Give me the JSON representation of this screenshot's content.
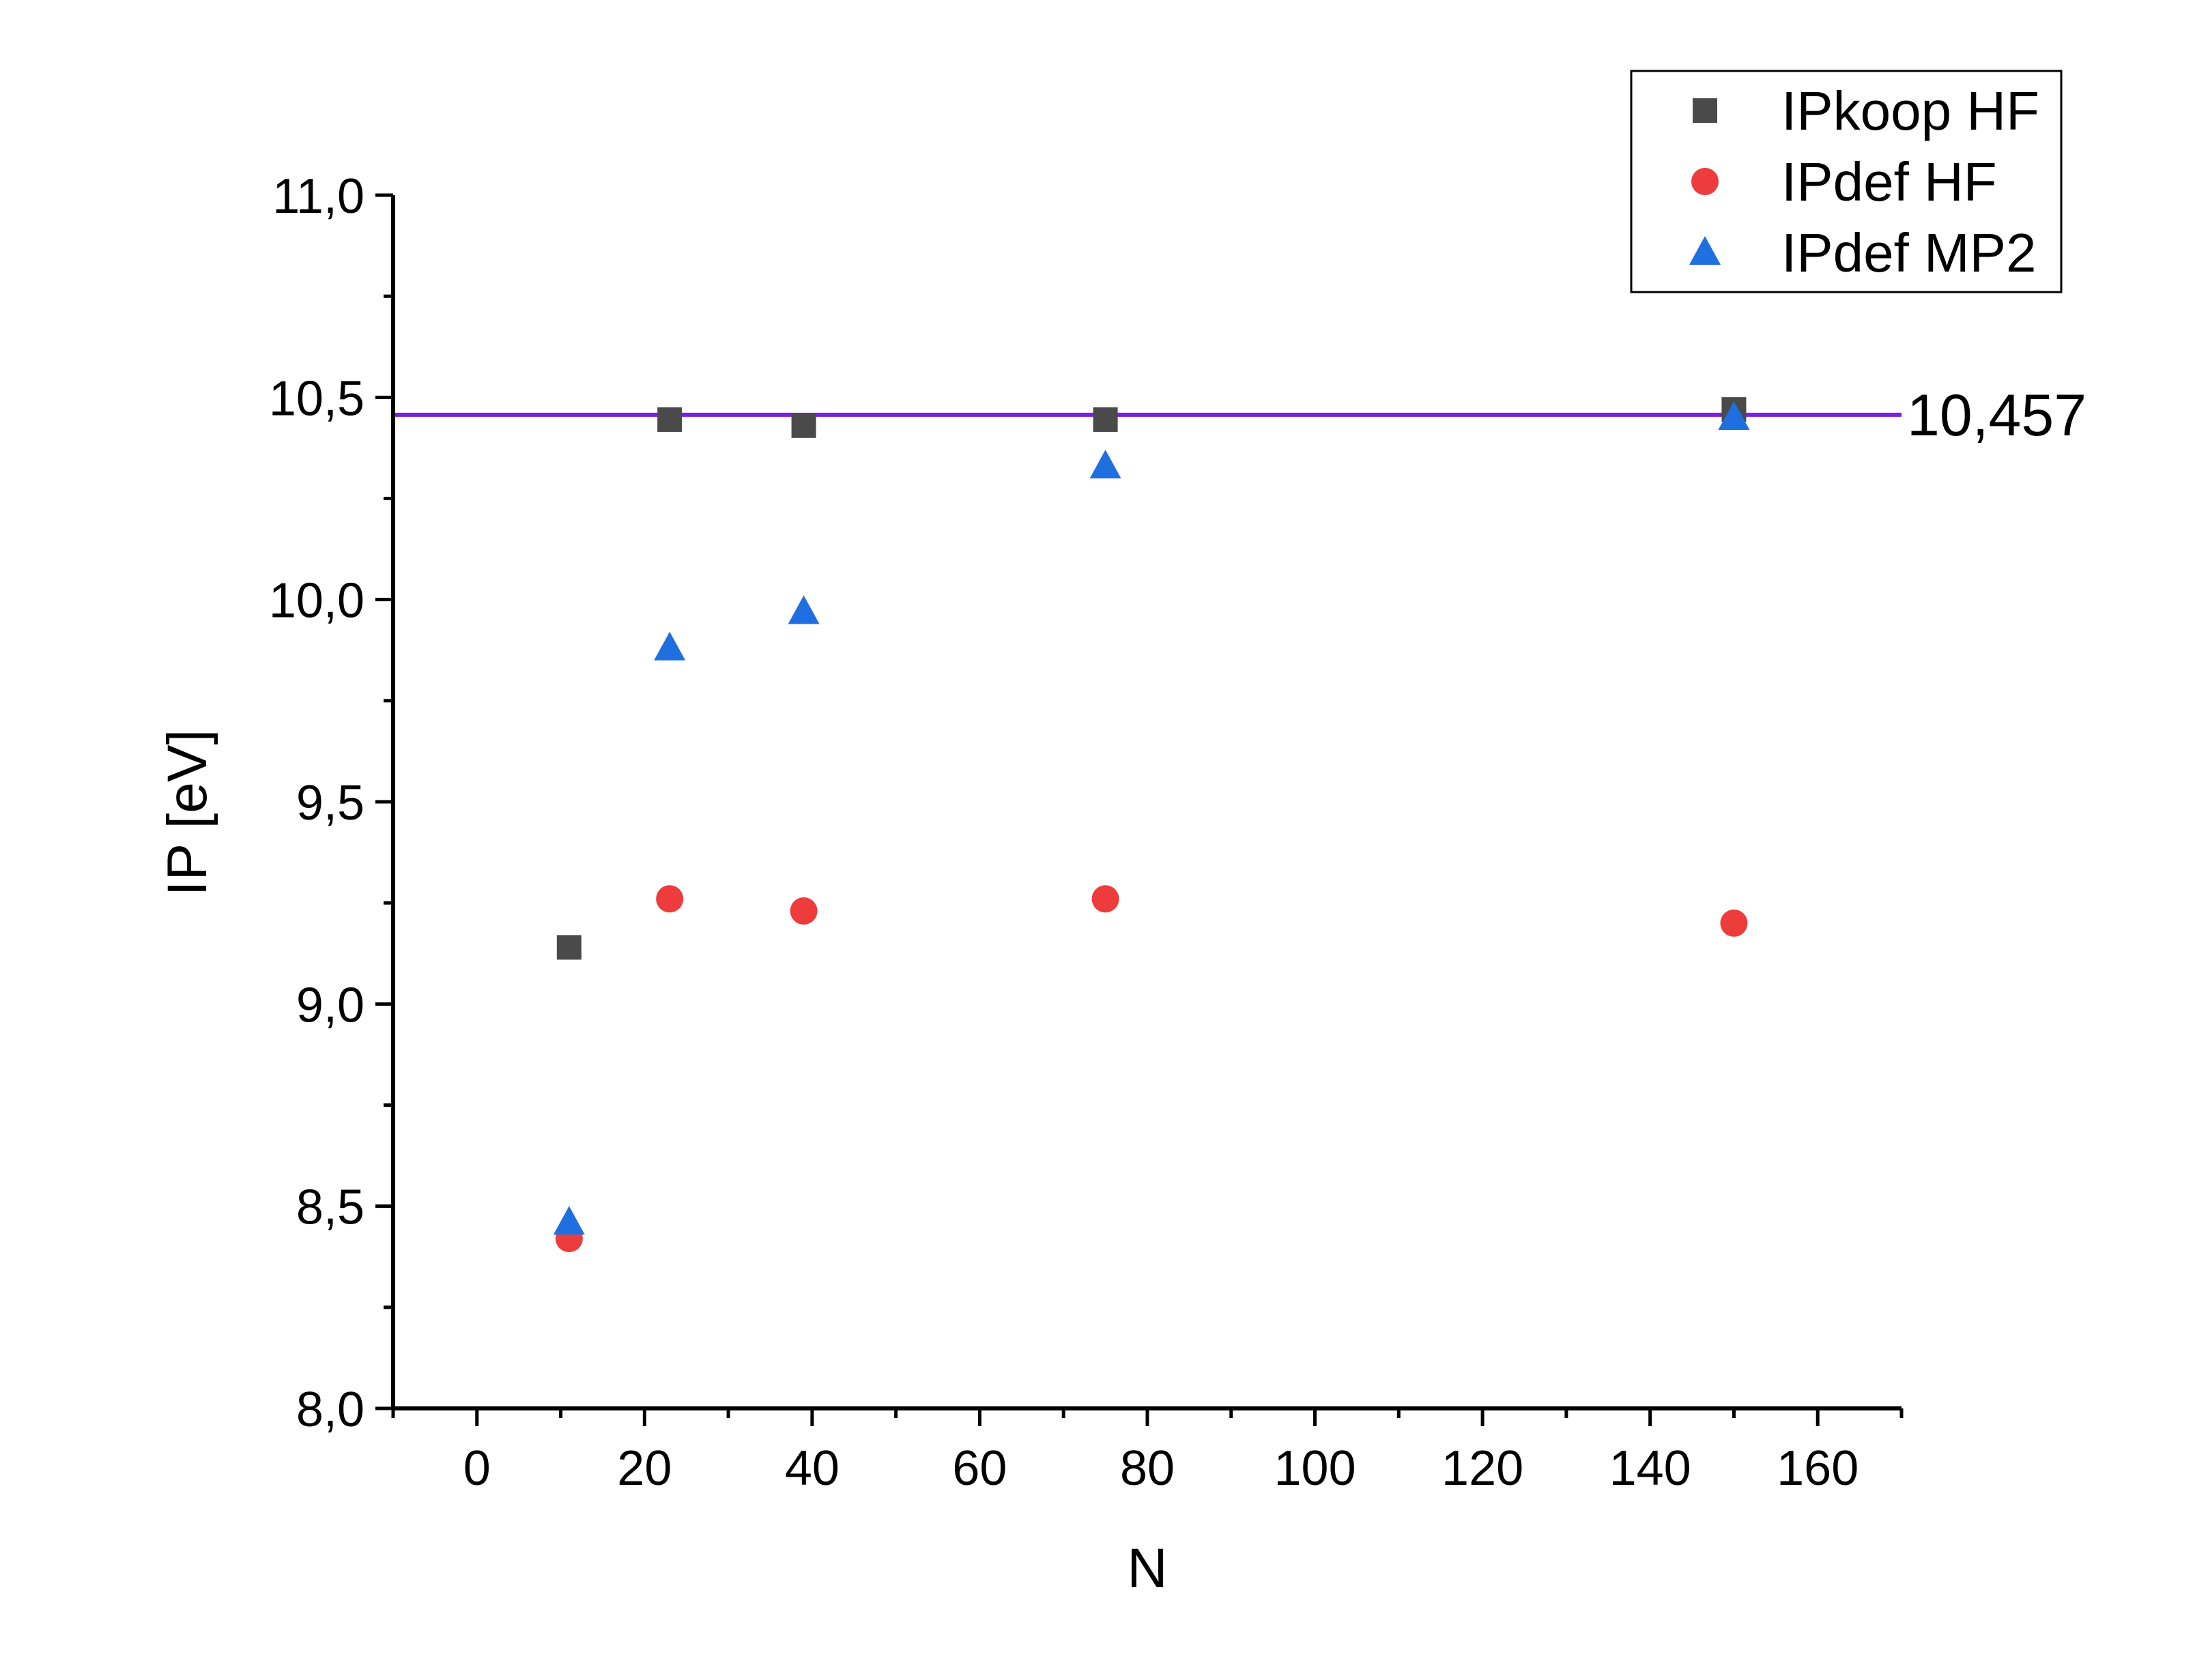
{
  "chart_data": {
    "type": "scatter",
    "title": "",
    "xlabel": "N",
    "ylabel": "IP [eV]",
    "xlim": [
      -10,
      170
    ],
    "ylim": [
      8.0,
      11.0
    ],
    "x_ticks": [
      0,
      20,
      40,
      60,
      80,
      100,
      120,
      140,
      160
    ],
    "x_tick_labels": [
      "0",
      "20",
      "40",
      "60",
      "80",
      "100",
      "120",
      "140",
      "160"
    ],
    "y_ticks": [
      8.0,
      8.5,
      9.0,
      9.5,
      10.0,
      10.5,
      11.0
    ],
    "y_tick_labels": [
      "8,0",
      "8,5",
      "9,0",
      "9,5",
      "10,0",
      "10,5",
      "11,0"
    ],
    "grid": false,
    "legend_position": "top-right",
    "series": [
      {
        "name": "IPkoop HF",
        "marker": "square",
        "color": "#4a4a4a",
        "x": [
          11,
          23,
          39,
          75,
          150
        ],
        "y": [
          9.14,
          10.445,
          10.43,
          10.445,
          10.47
        ]
      },
      {
        "name": "IPdef HF",
        "marker": "circle",
        "color": "#ee3b3b",
        "x": [
          11,
          23,
          39,
          75,
          150
        ],
        "y": [
          8.42,
          9.26,
          9.23,
          9.26,
          9.2
        ]
      },
      {
        "name": "IPdef MP2",
        "marker": "triangle",
        "color": "#1f6fe0",
        "x": [
          11,
          23,
          39,
          75,
          150
        ],
        "y": [
          8.46,
          9.88,
          9.97,
          10.33,
          10.45
        ]
      }
    ],
    "reference_line": {
      "y": 10.457,
      "label": "10,457",
      "color": "#7b1fe0"
    }
  }
}
